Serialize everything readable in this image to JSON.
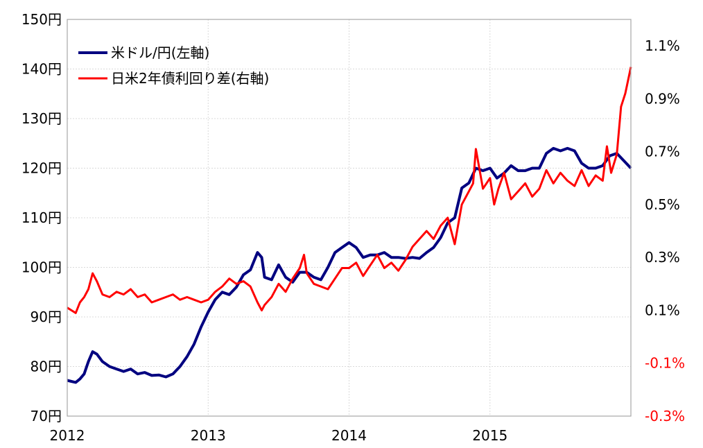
{
  "chart_data": {
    "type": "line",
    "title": "",
    "legend": {
      "placement": "top-left",
      "entries": [
        "米ドル/円(左軸)",
        "日米2年債利回り差(右軸)"
      ]
    },
    "x_axis": {
      "range": [
        2012.0,
        2016.0
      ],
      "ticks": [
        {
          "value": 2012,
          "label": "2012"
        },
        {
          "value": 2013,
          "label": "2013"
        },
        {
          "value": 2014,
          "label": "2014"
        },
        {
          "value": 2015,
          "label": "2015"
        }
      ]
    },
    "y_left": {
      "range": [
        70,
        150
      ],
      "ticks": [
        "70円",
        "80円",
        "90円",
        "100円",
        "110円",
        "120円",
        "130円",
        "140円",
        "150円"
      ],
      "tick_values": [
        70,
        80,
        90,
        100,
        110,
        120,
        130,
        140,
        150
      ]
    },
    "y_right": {
      "range": [
        -0.3,
        1.2
      ],
      "ticks": [
        {
          "value": -0.3,
          "label": "-0.3%",
          "negative": true
        },
        {
          "value": -0.1,
          "label": "-0.1%",
          "negative": true
        },
        {
          "value": 0.1,
          "label": "0.1%",
          "negative": false
        },
        {
          "value": 0.3,
          "label": "0.3%",
          "negative": false
        },
        {
          "value": 0.5,
          "label": "0.5%",
          "negative": false
        },
        {
          "value": 0.7,
          "label": "0.7%",
          "negative": false
        },
        {
          "value": 0.9,
          "label": "0.9%",
          "negative": false
        },
        {
          "value": 1.1,
          "label": "1.1%",
          "negative": false
        }
      ]
    },
    "grid": true,
    "series": [
      {
        "name": "米ドル/円(左軸)",
        "axis": "left",
        "color": "#000080",
        "x": [
          2012.0,
          2012.03,
          2012.06,
          2012.09,
          2012.12,
          2012.15,
          2012.18,
          2012.21,
          2012.25,
          2012.3,
          2012.35,
          2012.4,
          2012.45,
          2012.5,
          2012.55,
          2012.6,
          2012.65,
          2012.7,
          2012.75,
          2012.8,
          2012.85,
          2012.9,
          2012.95,
          2013.0,
          2013.05,
          2013.1,
          2013.15,
          2013.2,
          2013.25,
          2013.3,
          2013.35,
          2013.38,
          2013.4,
          2013.45,
          2013.5,
          2013.55,
          2013.6,
          2013.65,
          2013.7,
          2013.75,
          2013.8,
          2013.85,
          2013.9,
          2013.95,
          2014.0,
          2014.05,
          2014.1,
          2014.15,
          2014.2,
          2014.25,
          2014.3,
          2014.35,
          2014.4,
          2014.45,
          2014.5,
          2014.55,
          2014.6,
          2014.65,
          2014.7,
          2014.75,
          2014.8,
          2014.85,
          2014.9,
          2014.95,
          2015.0,
          2015.05,
          2015.1,
          2015.15,
          2015.2,
          2015.25,
          2015.3,
          2015.35,
          2015.4,
          2015.45,
          2015.5,
          2015.55,
          2015.6,
          2015.65,
          2015.7,
          2015.75,
          2015.8,
          2015.85,
          2015.9,
          2015.95,
          2016.0
        ],
        "values": [
          77.2,
          77.0,
          76.8,
          77.5,
          78.5,
          81.0,
          83.0,
          82.5,
          81.0,
          80.0,
          79.5,
          79.0,
          79.5,
          78.5,
          78.8,
          78.2,
          78.3,
          77.9,
          78.5,
          80.0,
          82.0,
          84.5,
          88.0,
          91.0,
          93.5,
          95.0,
          94.5,
          96.0,
          98.5,
          99.5,
          103.0,
          102.0,
          98.0,
          97.5,
          100.5,
          98.0,
          97.0,
          99.0,
          99.0,
          98.0,
          97.5,
          100.0,
          103.0,
          104.0,
          105.0,
          104.0,
          102.0,
          102.5,
          102.5,
          103.0,
          102.0,
          102.0,
          101.8,
          102.0,
          101.8,
          103.0,
          104.0,
          106.0,
          109.0,
          110.0,
          116.0,
          117.0,
          120.0,
          119.5,
          120.0,
          118.0,
          119.0,
          120.5,
          119.5,
          119.5,
          120.0,
          120.0,
          123.0,
          124.0,
          123.5,
          124.0,
          123.5,
          121.0,
          120.0,
          120.0,
          120.5,
          122.5,
          123.0,
          121.5,
          120.0
        ]
      },
      {
        "name": "日米2年債利回り差(右軸)",
        "axis": "right",
        "color": "#ff0000",
        "x": [
          2012.0,
          2012.03,
          2012.06,
          2012.09,
          2012.12,
          2012.15,
          2012.18,
          2012.21,
          2012.25,
          2012.3,
          2012.35,
          2012.4,
          2012.45,
          2012.5,
          2012.55,
          2012.6,
          2012.65,
          2012.7,
          2012.75,
          2012.8,
          2012.85,
          2012.9,
          2012.95,
          2013.0,
          2013.05,
          2013.1,
          2013.15,
          2013.2,
          2013.25,
          2013.3,
          2013.35,
          2013.38,
          2013.4,
          2013.45,
          2013.5,
          2013.55,
          2013.6,
          2013.65,
          2013.68,
          2013.7,
          2013.75,
          2013.8,
          2013.85,
          2013.9,
          2013.95,
          2014.0,
          2014.05,
          2014.1,
          2014.15,
          2014.2,
          2014.25,
          2014.3,
          2014.35,
          2014.4,
          2014.45,
          2014.5,
          2014.55,
          2014.6,
          2014.65,
          2014.7,
          2014.75,
          2014.8,
          2014.85,
          2014.88,
          2014.9,
          2014.95,
          2015.0,
          2015.03,
          2015.06,
          2015.1,
          2015.15,
          2015.2,
          2015.25,
          2015.3,
          2015.35,
          2015.4,
          2015.45,
          2015.5,
          2015.55,
          2015.6,
          2015.65,
          2015.7,
          2015.75,
          2015.8,
          2015.83,
          2015.86,
          2015.9,
          2015.93,
          2015.96,
          2016.0
        ],
        "values": [
          0.11,
          0.1,
          0.09,
          0.13,
          0.15,
          0.18,
          0.24,
          0.21,
          0.16,
          0.15,
          0.17,
          0.16,
          0.18,
          0.15,
          0.16,
          0.13,
          0.14,
          0.15,
          0.16,
          0.14,
          0.15,
          0.14,
          0.13,
          0.14,
          0.17,
          0.19,
          0.22,
          0.2,
          0.21,
          0.19,
          0.13,
          0.1,
          0.12,
          0.15,
          0.2,
          0.17,
          0.22,
          0.26,
          0.31,
          0.24,
          0.2,
          0.19,
          0.18,
          0.22,
          0.26,
          0.26,
          0.28,
          0.23,
          0.27,
          0.31,
          0.26,
          0.28,
          0.25,
          0.29,
          0.34,
          0.37,
          0.4,
          0.37,
          0.42,
          0.45,
          0.35,
          0.5,
          0.55,
          0.58,
          0.71,
          0.56,
          0.6,
          0.5,
          0.56,
          0.62,
          0.52,
          0.55,
          0.58,
          0.53,
          0.56,
          0.63,
          0.58,
          0.62,
          0.59,
          0.57,
          0.63,
          0.57,
          0.61,
          0.59,
          0.72,
          0.62,
          0.69,
          0.87,
          0.92,
          1.02
        ]
      }
    ]
  }
}
